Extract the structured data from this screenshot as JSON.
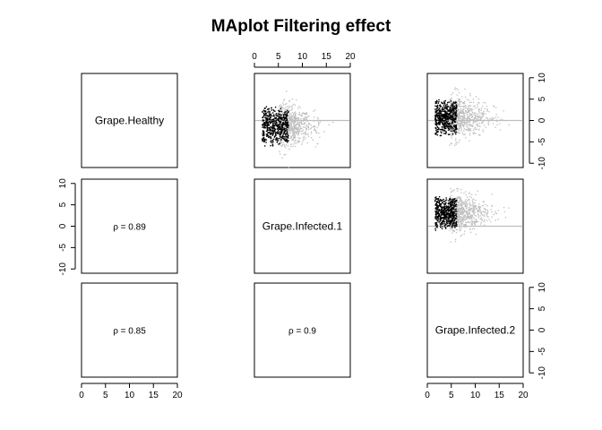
{
  "chart_data": {
    "type": "scatter",
    "title": "MAplot Filtering effect",
    "layout": "3x3 pairs matrix",
    "samples": [
      "Grape.Healthy",
      "Grape.Infected.1",
      "Grape.Infected.2"
    ],
    "x_axis": {
      "range": [
        0,
        20
      ],
      "ticks": [
        0,
        5,
        10,
        15,
        20
      ]
    },
    "y_axis": {
      "range": [
        -11,
        11
      ],
      "ticks": [
        -10,
        -5,
        0,
        5,
        10
      ]
    },
    "reference_line_y": 0,
    "colors": {
      "filtered_out": "#000000",
      "retained": "#bebebe",
      "reference_line": "#bebebe"
    },
    "correlations": [
      {
        "row": 2,
        "col": 1,
        "label": "ρ = 0.89"
      },
      {
        "row": 3,
        "col": 1,
        "label": "ρ = 0.85"
      },
      {
        "row": 3,
        "col": 2,
        "label": "ρ = 0.9"
      }
    ],
    "ma_panels": [
      {
        "row": 1,
        "col": 2,
        "pair": [
          "Grape.Healthy",
          "Grape.Infected.1"
        ],
        "filtered_x_range": [
          1.5,
          7
        ],
        "retained_x_range": [
          5,
          15
        ],
        "center_y": -1.2,
        "spread_y": 4.5
      },
      {
        "row": 1,
        "col": 3,
        "pair": [
          "Grape.Healthy",
          "Grape.Infected.2"
        ],
        "filtered_x_range": [
          1.5,
          6
        ],
        "retained_x_range": [
          4.5,
          15
        ],
        "center_y": 0.8,
        "spread_y": 4.5
      },
      {
        "row": 2,
        "col": 3,
        "pair": [
          "Grape.Infected.1",
          "Grape.Infected.2"
        ],
        "filtered_x_range": [
          1.5,
          6
        ],
        "retained_x_range": [
          4.5,
          15
        ],
        "center_y": 3.2,
        "spread_y": 4
      }
    ]
  }
}
